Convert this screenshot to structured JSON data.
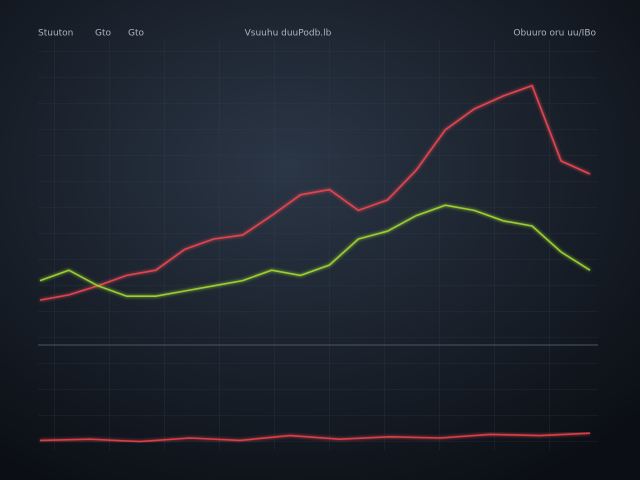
{
  "chart_data": [
    {
      "type": "line",
      "title": "Vsuuhu duuPodb.lb",
      "annotations": [
        "Stuuton",
        "Gto",
        "Gto",
        "Obuuro oru uu/IBo"
      ],
      "categories": [
        null,
        null,
        null,
        null,
        null,
        null,
        null,
        null,
        null,
        null,
        null,
        null,
        null,
        null,
        null,
        null,
        null,
        null,
        null,
        null
      ],
      "ylim": [
        0,
        100
      ],
      "series": [
        {
          "color": "#e0454f",
          "values": [
            11.5,
            13.5,
            17,
            21,
            23,
            31,
            35,
            36.5,
            44,
            52,
            54,
            46,
            50,
            61.5,
            77,
            85,
            90,
            94,
            65,
            60
          ]
        },
        {
          "color": "#9acd32",
          "values": [
            19,
            23,
            17,
            13,
            13,
            15,
            17,
            19,
            23,
            21,
            25,
            35,
            38,
            44,
            48,
            46,
            42,
            40,
            30,
            23
          ]
        }
      ]
    },
    {
      "type": "line",
      "categories": [
        null,
        null,
        null,
        null,
        null,
        null,
        null,
        null,
        null,
        null,
        null,
        null
      ],
      "ylim": [
        0,
        100
      ],
      "series": [
        {
          "color": "#d8404a",
          "values": [
            8,
            9,
            7,
            10,
            8,
            12,
            9,
            11,
            10,
            13,
            12,
            14
          ]
        }
      ]
    }
  ]
}
